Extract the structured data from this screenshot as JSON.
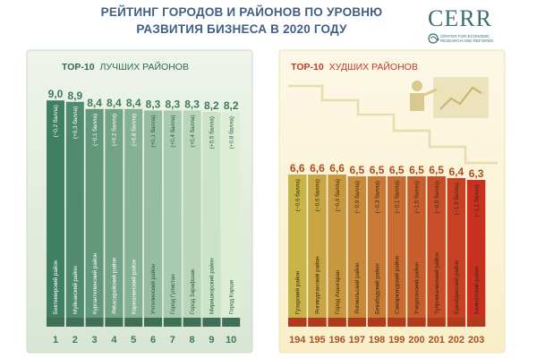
{
  "title": {
    "line1": "РЕЙТИНГ ГОРОДОВ И РАЙОНОВ ПО УРОВНЮ",
    "line2": "РАЗВИТИЯ БИЗНЕСА В 2020 ГОДУ"
  },
  "logo": {
    "word": "CERR",
    "subtitle": "CENTER FOR ECONOMIC RESEARCH AND REFORMS"
  },
  "colors": {
    "title": "#3f5f86",
    "left_panel_bg": "#dfe9dc",
    "right_panel_bg": "#fbf3d8",
    "left_bars_dark": "#3f7f63",
    "left_bars_light": "#dcefd4",
    "right_bars_start": "#c8b548",
    "right_bars_end": "#c8311f"
  },
  "chart_data": [
    {
      "type": "bar",
      "title_bold": "TOP-10",
      "title": "ЛУЧШИХ РАЙОНОВ",
      "ranks": [
        "1",
        "2",
        "3",
        "4",
        "5",
        "6",
        "7",
        "8",
        "9",
        "10"
      ],
      "values": [
        9.0,
        8.9,
        8.4,
        8.4,
        8.4,
        8.3,
        8.3,
        8.3,
        8.2,
        8.2
      ],
      "value_labels": [
        "9,0",
        "8,9",
        "8,4",
        "8,4",
        "8,4",
        "8,3",
        "8,3",
        "8,3",
        "8,2",
        "8,2"
      ],
      "categories": [
        "Бектемирский район",
        "Муйнакский район",
        "Кургантепинский район",
        "Якkасарайский район",
        "Карманинский район",
        "Учтепинский район",
        "Город Гулистан",
        "Город Зарафшан",
        "Миришкорский район",
        "Город Карши"
      ],
      "changes": [
        "(−0,2 балла)",
        "(+0,3 балла)",
        "(−0,1 балла)",
        "(+0,2 балла)",
        "(+0,8 балла)",
        "(+0,1 балла)",
        "(+0,4 балла)",
        "(+0,4 балла)",
        "(+0,5 балла)",
        "(+0,8 балла)"
      ]
    },
    {
      "type": "bar",
      "title_bold": "TOP-10",
      "title": "ХУДШИХ РАЙОНОВ",
      "ranks": [
        "194",
        "195",
        "196",
        "197",
        "198",
        "199",
        "200",
        "201",
        "202",
        "203"
      ],
      "values": [
        6.6,
        6.6,
        6.6,
        6.5,
        6.5,
        6.5,
        6.5,
        6.5,
        6.4,
        6.3
      ],
      "value_labels": [
        "6,6",
        "6,6",
        "6,6",
        "6,5",
        "6,5",
        "6,5",
        "6,5",
        "6,5",
        "6,4",
        "6,3"
      ],
      "categories": [
        "Гузарский район",
        "Янгикурганский район",
        "Город Ахангаран",
        "Янгиюльский район",
        "Бекабадский район",
        "Самаркандский район",
        "Учкурганский район",
        "Тупроккалинский район",
        "Бувайдинский район",
        "Баяматский район"
      ],
      "changes": [
        "(−0,6 балла)",
        "(−0,6 балла)",
        "(−0,6 балла)",
        "(−0,9 балла)",
        "(−0,3 балла)",
        "(−0,1 балла)",
        "(−1,5 балла)",
        "(−0,9 балла)",
        "(−1,3 балла)",
        "(−1,1 балла)"
      ]
    }
  ]
}
